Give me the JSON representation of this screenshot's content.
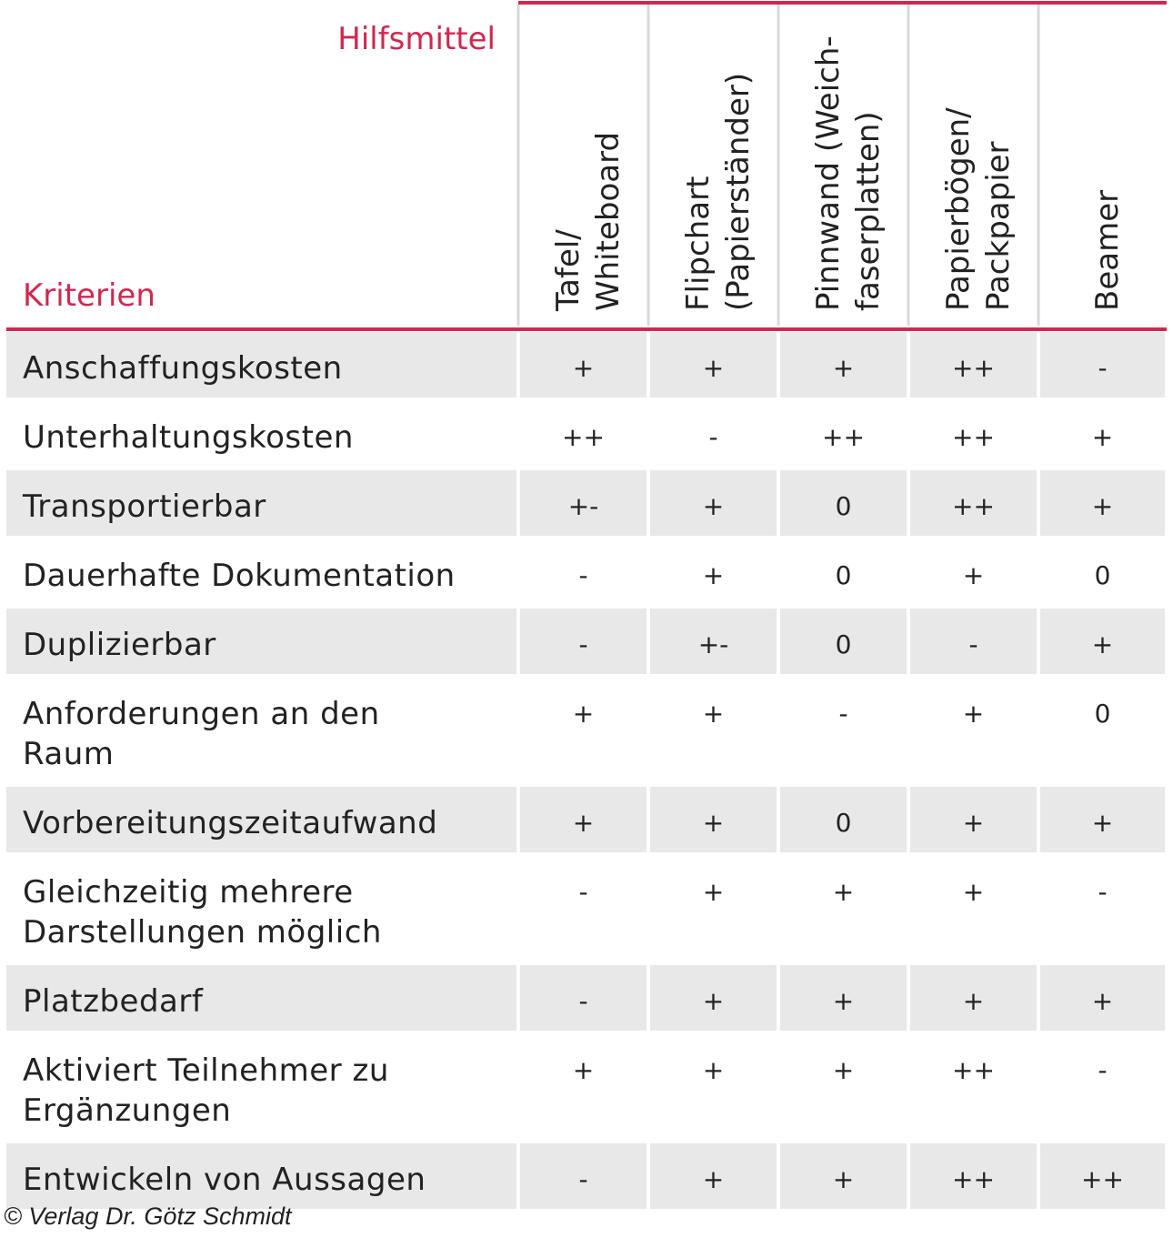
{
  "header": {
    "row_title": "Hilfsmittel",
    "column_title": "Kriterien",
    "columns": [
      [
        "Tafel/",
        "Whiteboard"
      ],
      [
        "Flipchart",
        "(Papierständer)"
      ],
      [
        "Pinnwand (Weich-",
        "faserplatten)"
      ],
      [
        "Papierbögen/",
        "Packpapier"
      ],
      [
        "Beamer"
      ]
    ]
  },
  "table": {
    "rows": [
      [
        "Anschaffungskosten",
        "+",
        "+",
        "+",
        "++",
        "-"
      ],
      [
        "Unterhaltungskosten",
        "++",
        "-",
        "++",
        "++",
        "+"
      ],
      [
        "Transportierbar",
        "+-",
        "+",
        "0",
        "++",
        "+"
      ],
      [
        "Dauerhafte Dokumentation",
        "-",
        "+",
        "0",
        "+",
        "0"
      ],
      [
        "Duplizierbar",
        "-",
        "+-",
        "0",
        "-",
        "+"
      ],
      [
        "Anforderungen an den Raum",
        "+",
        "+",
        "-",
        "+",
        "0"
      ],
      [
        "Vorbereitungszeitaufwand",
        "+",
        "+",
        "0",
        "+",
        "+"
      ],
      [
        "Gleichzeitig mehrere Darstellungen möglich",
        "-",
        "+",
        "+",
        "+",
        "-"
      ],
      [
        "Platzbedarf",
        "-",
        "+",
        "+",
        "+",
        "+"
      ],
      [
        "Aktiviert Teilnehmer zu Ergänzungen",
        "+",
        "+",
        "+",
        "++",
        "-"
      ],
      [
        "Entwickeln von Aussagen",
        "-",
        "+",
        "+",
        "++",
        "++"
      ]
    ]
  },
  "footer": "© Verlag Dr. Götz Schmidt"
}
